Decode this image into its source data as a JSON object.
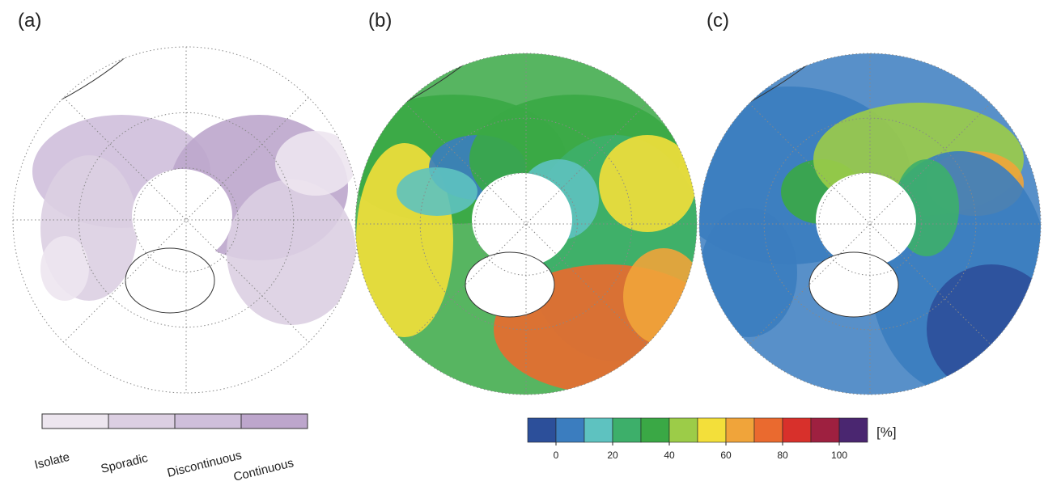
{
  "panels": [
    {
      "label": "(a)"
    },
    {
      "label": "(b)"
    },
    {
      "label": "(c)"
    }
  ],
  "permafrost_legend": {
    "colors": [
      "#ede6ef",
      "#dccfe2",
      "#cfbfdb",
      "#bda6cc"
    ],
    "labels": [
      "Isolate",
      "Sporadic",
      "Discontinuous",
      "Continuous"
    ]
  },
  "colorbar": {
    "colors": [
      "#2c4f9a",
      "#3b7dbf",
      "#5ec2c0",
      "#3daf6a",
      "#3aa845",
      "#9ccc48",
      "#f3df3a",
      "#f0a43a",
      "#ea6a2f",
      "#d8302b",
      "#9e2040",
      "#4a2670"
    ],
    "range": [
      -10,
      110
    ],
    "ticks": [
      0,
      20,
      40,
      60,
      80,
      100
    ],
    "unit": "[%]"
  }
}
